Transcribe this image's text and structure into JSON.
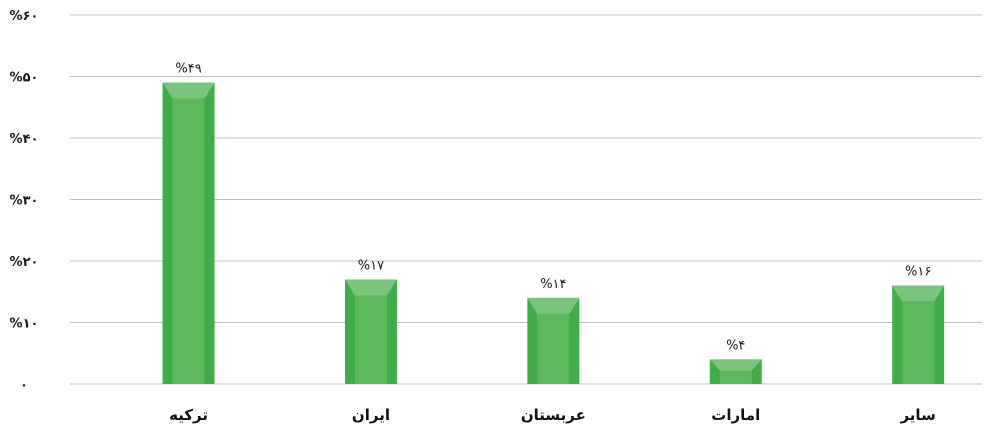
{
  "chart_data": {
    "type": "bar",
    "categories": [
      "ترکیه",
      "ایران",
      "عربستان",
      "امارات",
      "سایر"
    ],
    "values": [
      49,
      17,
      14,
      4,
      16
    ],
    "data_labels": [
      "%۴۹",
      "%۱۷",
      "%۱۴",
      "%۴",
      "%۱۶"
    ],
    "y_ticks": [
      0,
      10,
      20,
      30,
      40,
      50,
      60
    ],
    "y_tick_labels": [
      "۰",
      "%۱۰",
      "%۲۰",
      "%۳۰",
      "%۴۰",
      "%۵۰",
      "%۶۰"
    ],
    "ylim": [
      0,
      60
    ],
    "grid": true,
    "legend": "none",
    "colors": {
      "bar_side": "#3fae49",
      "bar_face": "#5cb85c",
      "bar_top": "#7bc47b"
    }
  }
}
